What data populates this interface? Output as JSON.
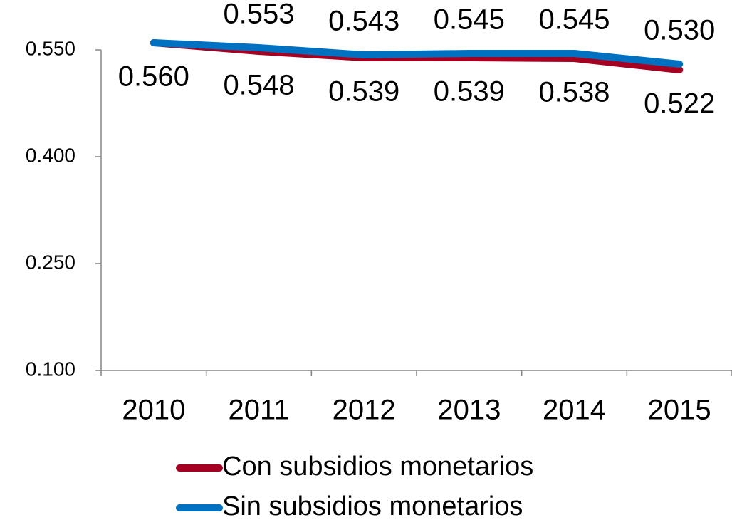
{
  "chart_data": {
    "type": "line",
    "categories": [
      "2010",
      "2011",
      "2012",
      "2013",
      "2014",
      "2015"
    ],
    "series": [
      {
        "name": "Con subsidios monetarios",
        "color": "#a50021",
        "values": [
          0.56,
          0.548,
          0.539,
          0.539,
          0.538,
          0.522
        ]
      },
      {
        "name": "Sin subsidios monetarios",
        "color": "#0070c0",
        "values": [
          0.56,
          0.553,
          0.543,
          0.545,
          0.545,
          0.53
        ],
        "value_labels": [
          null,
          "0.553",
          "0.543",
          "0.545",
          "0.545",
          "0.530"
        ]
      }
    ],
    "ylim": [
      0.1,
      0.55
    ],
    "yticks": [
      {
        "value": 0.1,
        "label": "0.100"
      },
      {
        "value": 0.25,
        "label": "0.250"
      },
      {
        "value": 0.4,
        "label": "0.400"
      },
      {
        "value": 0.55,
        "label": "0.550"
      }
    ],
    "legend": "bottom"
  }
}
